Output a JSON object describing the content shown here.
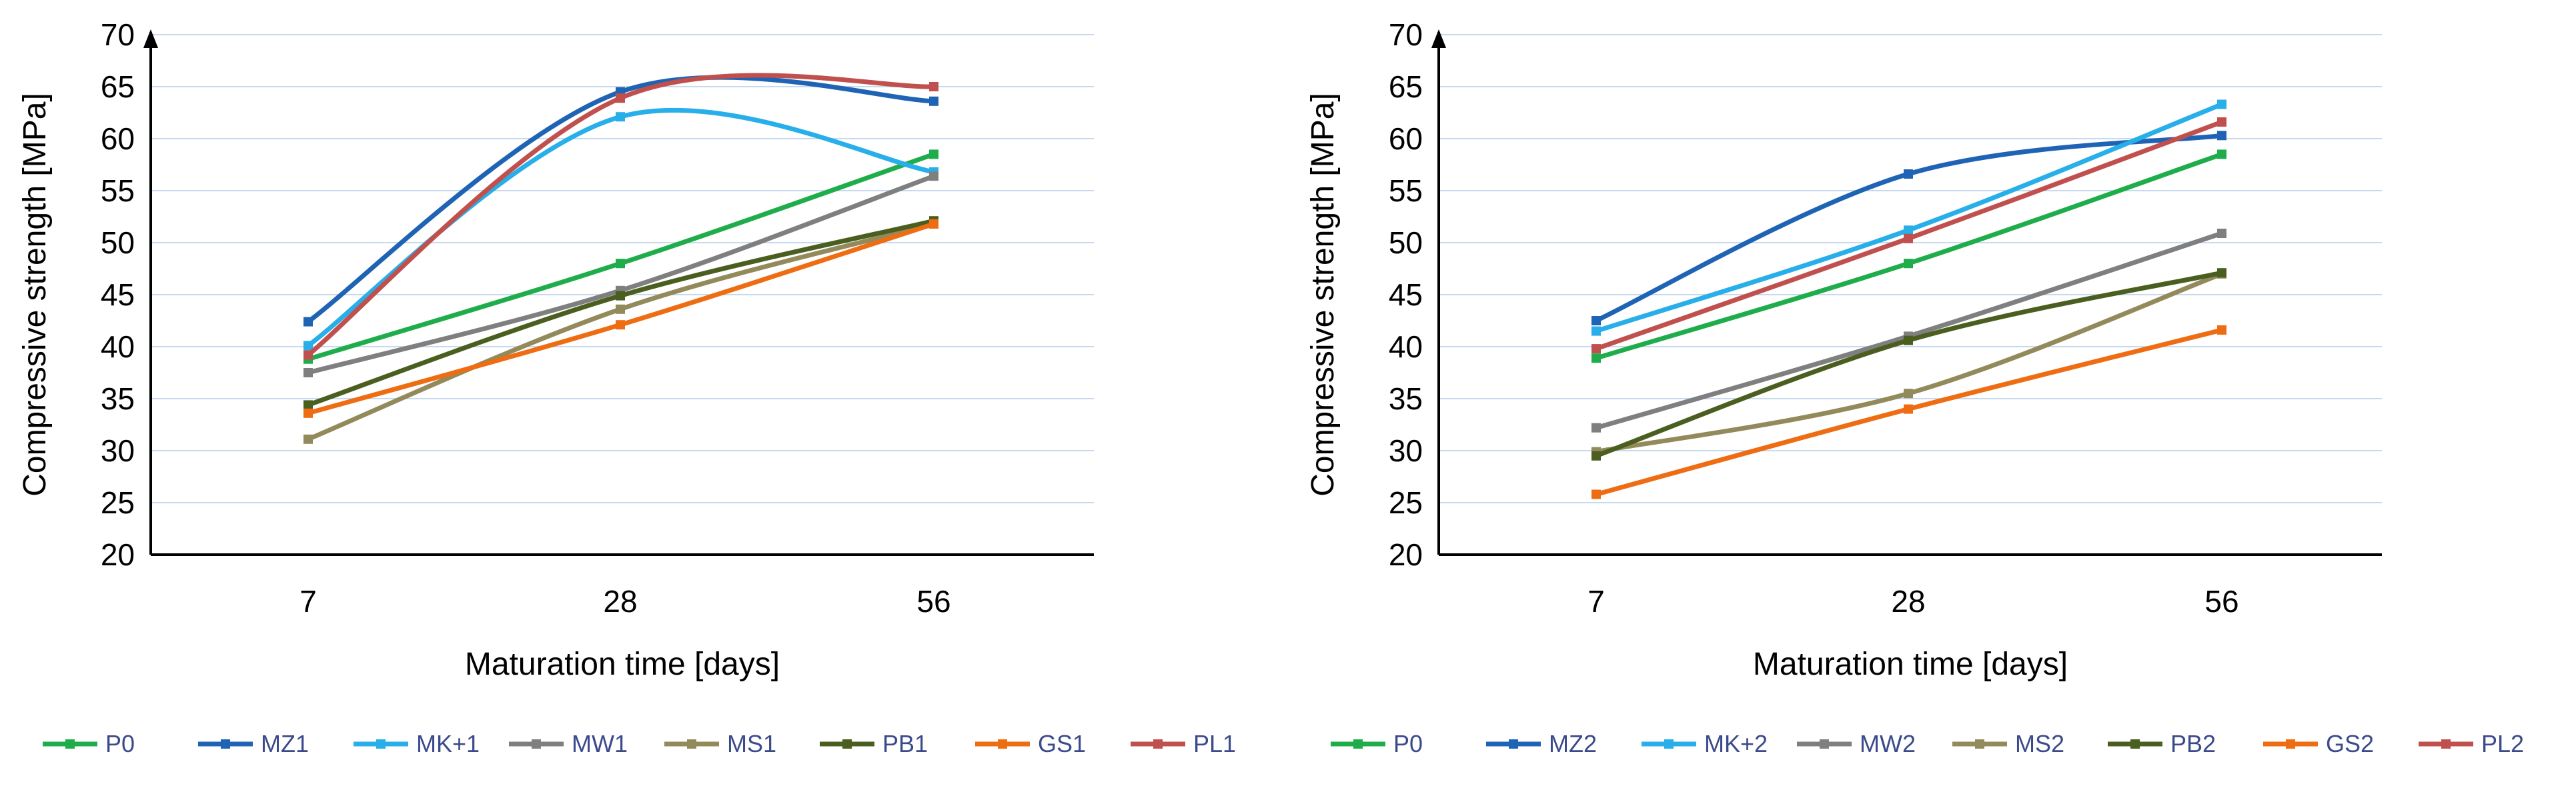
{
  "chart_data": [
    {
      "type": "line",
      "title": "",
      "xlabel": "Maturation time [days]",
      "ylabel": "Compressive strength [MPa]",
      "categories": [
        "7",
        "28",
        "56"
      ],
      "ylim": [
        20,
        70
      ],
      "yticks": [
        20,
        25,
        30,
        35,
        40,
        45,
        50,
        55,
        60,
        65,
        70
      ],
      "grid": true,
      "legend_position": "bottom",
      "series": [
        {
          "name": "P0",
          "color": "#1fad4b",
          "values": [
            38.8,
            48.0,
            58.5
          ]
        },
        {
          "name": "MZ1",
          "color": "#1f63b4",
          "values": [
            42.4,
            64.5,
            63.6
          ]
        },
        {
          "name": "MK+1",
          "color": "#28aee8",
          "values": [
            40.1,
            62.1,
            56.8
          ]
        },
        {
          "name": "MW1",
          "color": "#7f7f7f",
          "values": [
            37.5,
            45.4,
            56.4
          ]
        },
        {
          "name": "MS1",
          "color": "#938a5c",
          "values": [
            31.1,
            43.6,
            51.8
          ]
        },
        {
          "name": "PB1",
          "color": "#4a5e1f",
          "values": [
            34.4,
            44.9,
            52.1
          ]
        },
        {
          "name": "GS1",
          "color": "#ee6c12",
          "values": [
            33.6,
            42.1,
            51.8
          ]
        },
        {
          "name": "PL1",
          "color": "#c0504d",
          "values": [
            39.2,
            63.9,
            65.0
          ]
        }
      ]
    },
    {
      "type": "line",
      "title": "",
      "xlabel": "Maturation time [days]",
      "ylabel": "Compressive strength [MPa]",
      "categories": [
        "7",
        "28",
        "56"
      ],
      "ylim": [
        20,
        70
      ],
      "yticks": [
        20,
        25,
        30,
        35,
        40,
        45,
        50,
        55,
        60,
        65,
        70
      ],
      "grid": true,
      "legend_position": "bottom",
      "series": [
        {
          "name": "P0",
          "color": "#1fad4b",
          "values": [
            38.9,
            48.0,
            58.5
          ]
        },
        {
          "name": "MZ2",
          "color": "#1f63b4",
          "values": [
            42.5,
            56.6,
            60.3
          ]
        },
        {
          "name": "MK+2",
          "color": "#28aee8",
          "values": [
            41.5,
            51.2,
            63.3
          ]
        },
        {
          "name": "MW2",
          "color": "#7f7f7f",
          "values": [
            32.2,
            41.0,
            50.9
          ]
        },
        {
          "name": "MS2",
          "color": "#938a5c",
          "values": [
            29.9,
            35.5,
            47.0
          ]
        },
        {
          "name": "PB2",
          "color": "#4a5e1f",
          "values": [
            29.5,
            40.6,
            47.1
          ]
        },
        {
          "name": "GS2",
          "color": "#ee6c12",
          "values": [
            25.8,
            34.0,
            41.6
          ]
        },
        {
          "name": "PL2",
          "color": "#c0504d",
          "values": [
            39.8,
            50.4,
            61.6
          ]
        }
      ]
    }
  ]
}
